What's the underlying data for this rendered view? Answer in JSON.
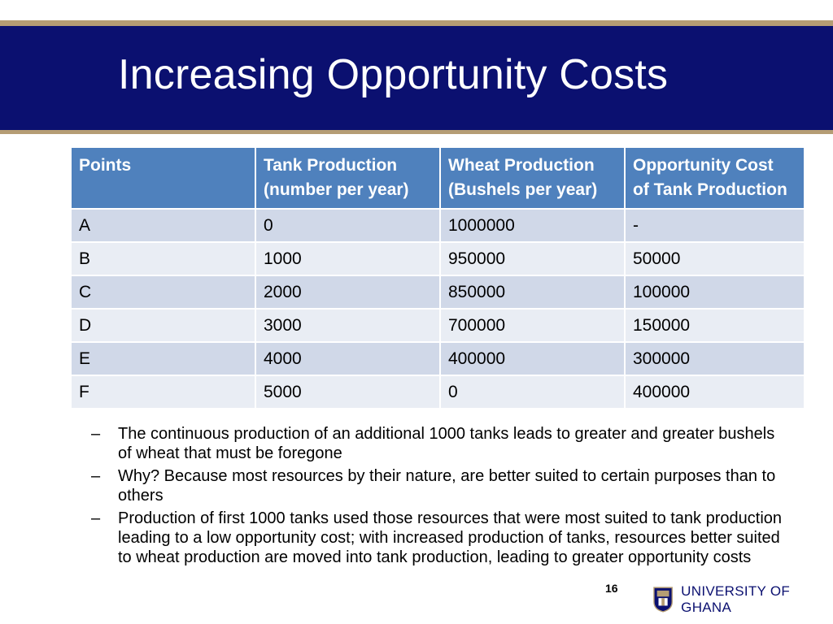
{
  "slide": {
    "title": "Increasing Opportunity Costs",
    "page_number": "16"
  },
  "table": {
    "headers": [
      [
        "Points",
        ""
      ],
      [
        "Tank Production",
        "(number per year)"
      ],
      [
        "Wheat Production",
        "(Bushels per year)"
      ],
      [
        "Opportunity Cost",
        "of Tank Production"
      ]
    ],
    "rows": [
      [
        "A",
        "0",
        "1000000",
        "-"
      ],
      [
        "B",
        "1000",
        "950000",
        "50000"
      ],
      [
        "C",
        "2000",
        "850000",
        "100000"
      ],
      [
        "D",
        "3000",
        "700000",
        "150000"
      ],
      [
        "E",
        "4000",
        "400000",
        "300000"
      ],
      [
        "F",
        "5000",
        "0",
        "400000"
      ]
    ]
  },
  "bullets": [
    "The continuous production of an additional 1000 tanks leads to greater and greater bushels of wheat that must be foregone",
    "Why? Because most resources by their nature, are better suited to certain purposes than to others",
    "Production of first 1000 tanks used those resources that were most suited to tank production leading to a low opportunity cost; with increased production of tanks, resources better suited to wheat production are moved into tank production, leading to greater opportunity costs"
  ],
  "bullet_marker": "–",
  "logo": {
    "text": "UNIVERSITY OF GHANA",
    "icon": "crest-icon"
  },
  "colors": {
    "title_band": "#0b1070",
    "accent_rule": "#b59d74",
    "header": "#4f81bd",
    "row_dark": "#d0d8e8",
    "row_light": "#e9edf4"
  }
}
